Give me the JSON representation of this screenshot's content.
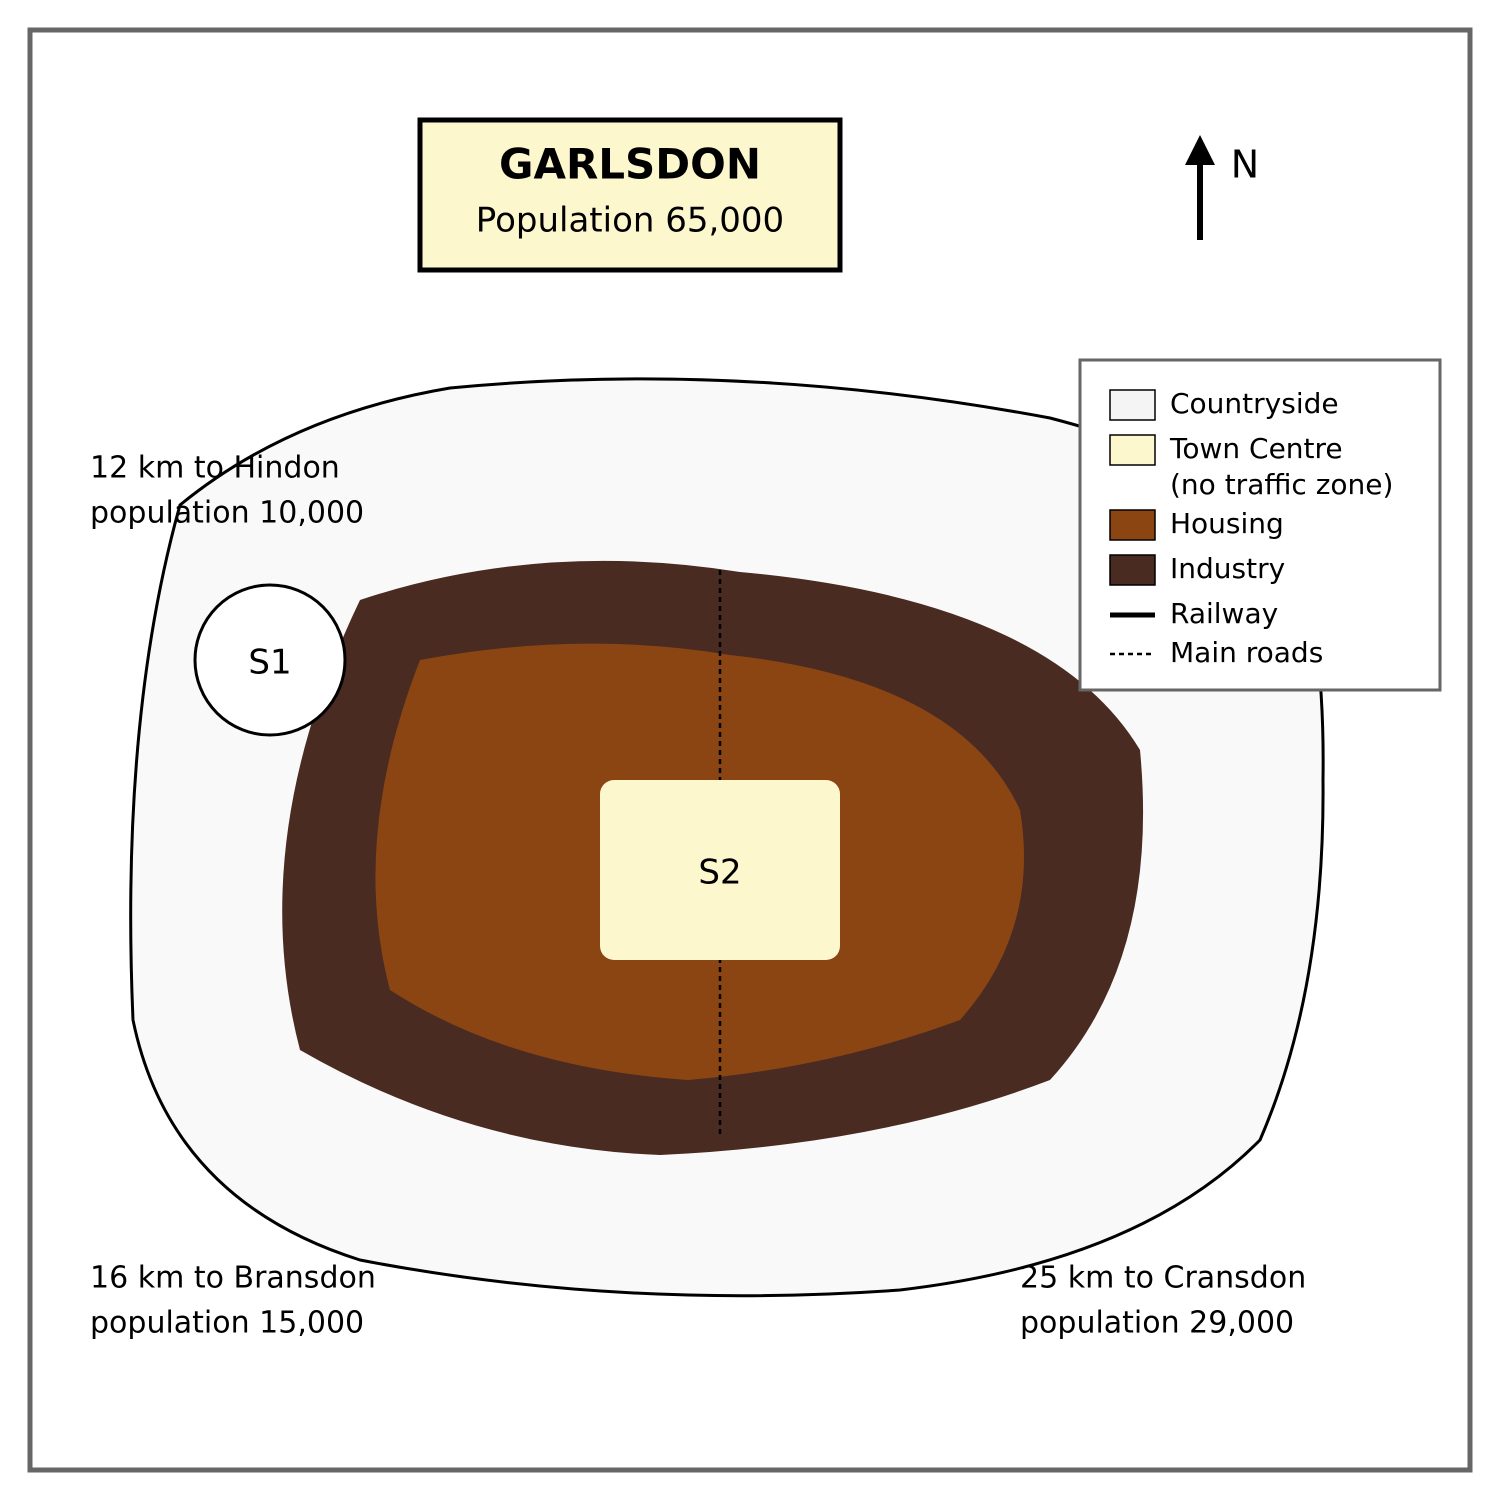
{
  "title": {
    "name": "GARLSDON",
    "population": "Population 65,000"
  },
  "north_label": "N",
  "sites": {
    "s1": "S1",
    "s2": "S2"
  },
  "distances": {
    "hindon": {
      "line1": "12 km to Hindon",
      "line2": "population 10,000"
    },
    "bransdon": {
      "line1": "16 km to Bransdon",
      "line2": "population 15,000"
    },
    "cransdon": {
      "line1": "25 km to Cransdon",
      "line2": "population 29,000"
    }
  },
  "legend": {
    "countryside": "Countryside",
    "town_centre_line1": "Town Centre",
    "town_centre_line2": "(no traffic zone)",
    "housing": "Housing",
    "industry": "Industry",
    "railway": "Railway",
    "main_roads": "Main roads"
  },
  "colors": {
    "countryside": "#f9f9f9",
    "town_centre": "#fdf7ce",
    "housing": "#8b4513",
    "industry": "#4a2b22",
    "frame": "#666666"
  }
}
